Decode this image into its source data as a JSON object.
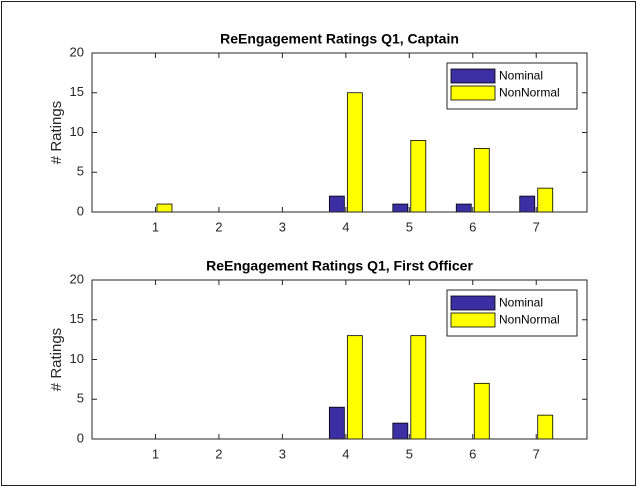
{
  "chart_data": [
    {
      "type": "bar",
      "title": "ReEngagement Ratings Q1, Captain",
      "ylabel": "# Ratings",
      "x": [
        1,
        2,
        3,
        4,
        5,
        6,
        7
      ],
      "series": [
        {
          "name": "Nominal",
          "color": "#3b2fa3",
          "values": [
            0,
            0,
            0,
            2,
            1,
            1,
            2
          ]
        },
        {
          "name": "NonNormal",
          "color": "#ffff00",
          "values": [
            1,
            0,
            0,
            15,
            9,
            8,
            3
          ]
        }
      ],
      "xlim": [
        0,
        7.8
      ],
      "xticks": [
        1,
        2,
        3,
        4,
        5,
        6,
        7
      ],
      "ylim": [
        0,
        20
      ],
      "yticks": [
        0,
        5,
        10,
        15,
        20
      ],
      "legend": "northeast"
    },
    {
      "type": "bar",
      "title": "ReEngagement Ratings Q1, First Officer",
      "ylabel": "# Ratings",
      "x": [
        1,
        2,
        3,
        4,
        5,
        6,
        7
      ],
      "series": [
        {
          "name": "Nominal",
          "color": "#3b2fa3",
          "values": [
            0,
            0,
            0,
            4,
            2,
            0,
            0
          ]
        },
        {
          "name": "NonNormal",
          "color": "#ffff00",
          "values": [
            0,
            0,
            0,
            13,
            13,
            7,
            3
          ]
        }
      ],
      "xlim": [
        0,
        7.8
      ],
      "xticks": [
        1,
        2,
        3,
        4,
        5,
        6,
        7
      ],
      "ylim": [
        0,
        20
      ],
      "yticks": [
        0,
        5,
        10,
        15,
        20
      ],
      "legend": "northeast"
    }
  ]
}
